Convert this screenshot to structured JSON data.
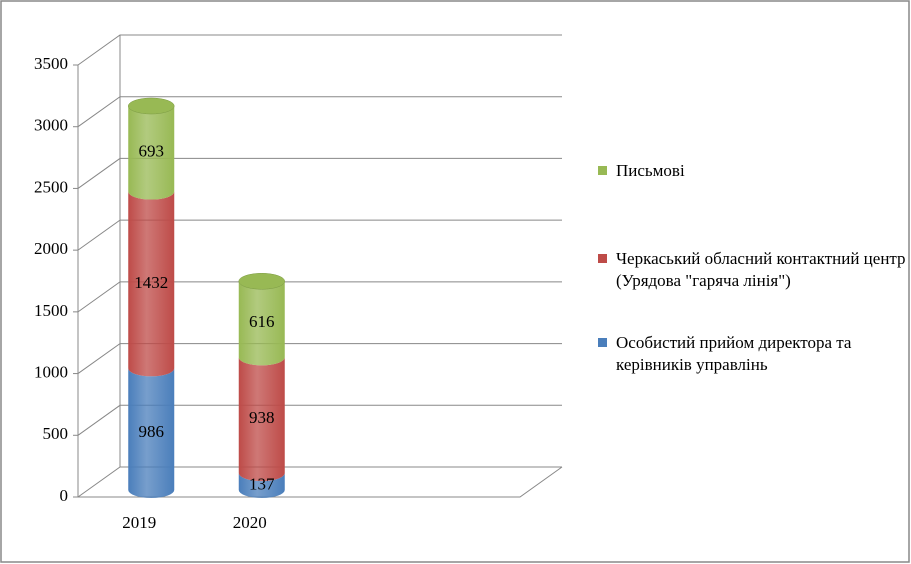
{
  "chart_data": {
    "type": "bar3d_cylinder_stacked",
    "categories": [
      "2019",
      "2020"
    ],
    "series": [
      {
        "name": "Особистий прийом директора та керівників управлінь",
        "color": "#4a7ebb",
        "values": [
          986,
          137
        ]
      },
      {
        "name": "Черкаський обласний контактний центр (Урядова \"гаряча лінія\")",
        "color": "#be4b48",
        "values": [
          1432,
          938
        ]
      },
      {
        "name": "Письмові",
        "color": "#98b954",
        "values": [
          693,
          616
        ]
      }
    ],
    "ylim": [
      0,
      3500
    ],
    "yticks": [
      0,
      500,
      1000,
      1500,
      2000,
      2500,
      3000,
      3500
    ],
    "grid": true,
    "legend": "right"
  }
}
